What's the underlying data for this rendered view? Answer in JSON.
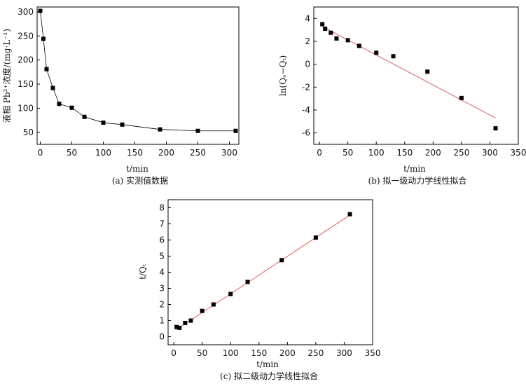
{
  "chart_data": [
    {
      "id": "a",
      "type": "line",
      "caption": "(a) 实测值数据",
      "xlabel": "t/min",
      "ylabel": "液相 Pb²⁺浓度/(mg·L⁻¹)",
      "xlim": [
        -5,
        315
      ],
      "ylim": [
        25,
        310
      ],
      "xticks": [
        0,
        50,
        100,
        150,
        200,
        250,
        300
      ],
      "yticks": [
        50,
        100,
        150,
        200,
        250,
        300
      ],
      "series": [
        {
          "x": [
            0,
            5,
            10,
            20,
            30,
            50,
            70,
            100,
            130,
            190,
            250,
            310
          ],
          "y": [
            302,
            244,
            181,
            142,
            109,
            101,
            82,
            70,
            66,
            56,
            53,
            53
          ]
        }
      ],
      "color": "#000000"
    },
    {
      "id": "b",
      "type": "scatter",
      "caption": "(b) 拟一级动力学线性拟合",
      "xlabel": "t/min",
      "ylabel": "ln(Qₑ−Qₜ)",
      "xlim": [
        -10,
        350
      ],
      "ylim": [
        -7,
        5
      ],
      "xticks": [
        0,
        50,
        100,
        150,
        200,
        250,
        300,
        350
      ],
      "yticks": [
        -6,
        -4,
        -2,
        0,
        2,
        4
      ],
      "series": [
        {
          "x": [
            5,
            10,
            20,
            30,
            50,
            70,
            100,
            130,
            190,
            250,
            310
          ],
          "y": [
            3.5,
            3.1,
            2.75,
            2.25,
            2.1,
            1.6,
            1.0,
            0.7,
            -0.65,
            -2.95,
            -5.6
          ]
        }
      ],
      "fit": {
        "x": [
          5,
          310
        ],
        "y": [
          3.3,
          -4.7
        ]
      },
      "color": "#000000",
      "fit_color": "#e05a5a"
    },
    {
      "id": "c",
      "type": "scatter",
      "caption": "(c) 拟二级动力学线性拟合",
      "xlabel": "t/min",
      "ylabel": "t/Qₜ",
      "xlim": [
        -10,
        350
      ],
      "ylim": [
        -0.5,
        8.5
      ],
      "xticks": [
        0,
        50,
        100,
        150,
        200,
        250,
        300,
        350
      ],
      "yticks": [
        0,
        1,
        2,
        3,
        4,
        5,
        6,
        7,
        8
      ],
      "series": [
        {
          "x": [
            5,
            10,
            20,
            30,
            50,
            70,
            100,
            130,
            190,
            250,
            310
          ],
          "y": [
            0.6,
            0.55,
            0.85,
            1.0,
            1.6,
            2.0,
            2.65,
            3.4,
            4.75,
            6.15,
            7.6
          ]
        }
      ],
      "fit": {
        "x": [
          5,
          310
        ],
        "y": [
          0.45,
          7.55
        ]
      },
      "color": "#000000",
      "fit_color": "#e05a5a"
    }
  ]
}
